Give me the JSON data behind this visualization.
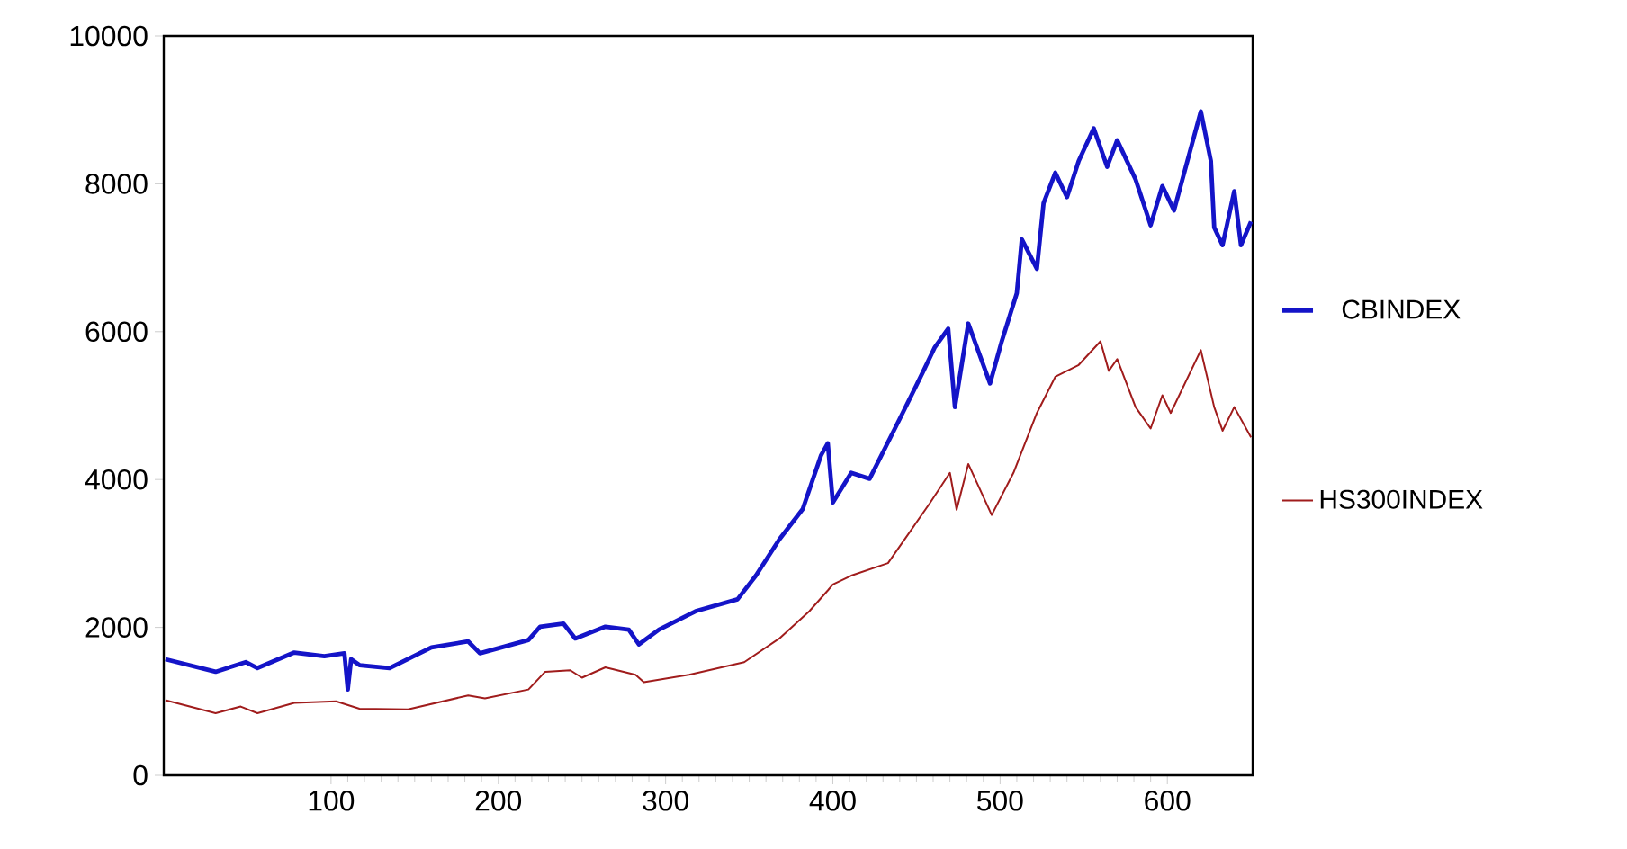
{
  "chart_data": {
    "type": "line",
    "xlim": [
      0,
      651
    ],
    "xticks": [
      100,
      200,
      300,
      400,
      500,
      600
    ],
    "ylim": [
      0,
      10000
    ],
    "yticks": [
      0,
      2000,
      4000,
      6000,
      8000,
      10000
    ],
    "legend": "right",
    "grid": false,
    "series": [
      {
        "name": "CBINDEX",
        "color": "#1414c8",
        "x": [
          1,
          31,
          49,
          56,
          78,
          96,
          108,
          110,
          112,
          117,
          135,
          160,
          182,
          189,
          218,
          225,
          239,
          246,
          264,
          278,
          284,
          296,
          318,
          343,
          354,
          368,
          382,
          393,
          397,
          400,
          411,
          422,
          440,
          454,
          461,
          469,
          473,
          481,
          494,
          501,
          510,
          513,
          522,
          526,
          533,
          540,
          547,
          556,
          564,
          570,
          581,
          590,
          597,
          604,
          620,
          626,
          628,
          633,
          640,
          644,
          650
        ],
        "values": [
          1570,
          1400,
          1530,
          1450,
          1660,
          1610,
          1650,
          1160,
          1570,
          1490,
          1450,
          1730,
          1810,
          1650,
          1830,
          2010,
          2050,
          1850,
          2010,
          1970,
          1770,
          1970,
          2220,
          2380,
          2700,
          3190,
          3600,
          4330,
          4490,
          3690,
          4090,
          4010,
          4820,
          5460,
          5790,
          6040,
          4980,
          6110,
          5300,
          5870,
          6520,
          7250,
          6850,
          7740,
          8150,
          7820,
          8310,
          8750,
          8230,
          8590,
          8060,
          7440,
          7970,
          7640,
          8980,
          8310,
          7410,
          7170,
          7900,
          7170,
          7490
        ]
      },
      {
        "name": "HS300INDEX",
        "color": "#a01c1c",
        "x": [
          1,
          31,
          46,
          56,
          78,
          103,
          117,
          146,
          182,
          192,
          218,
          228,
          243,
          250,
          264,
          282,
          287,
          314,
          347,
          368,
          386,
          397,
          400,
          411,
          433,
          458,
          470,
          474,
          481,
          495,
          508,
          522,
          533,
          547,
          560,
          565,
          570,
          581,
          590,
          597,
          602,
          620,
          628,
          633,
          640,
          650
        ],
        "values": [
          1015,
          840,
          930,
          840,
          980,
          1000,
          900,
          890,
          1080,
          1040,
          1160,
          1400,
          1420,
          1320,
          1460,
          1360,
          1260,
          1360,
          1530,
          1850,
          2220,
          2500,
          2580,
          2700,
          2870,
          3680,
          4090,
          3590,
          4210,
          3520,
          4090,
          4900,
          5390,
          5550,
          5870,
          5470,
          5630,
          4980,
          4690,
          5140,
          4900,
          5750,
          4980,
          4660,
          4980,
          4570
        ]
      }
    ]
  }
}
